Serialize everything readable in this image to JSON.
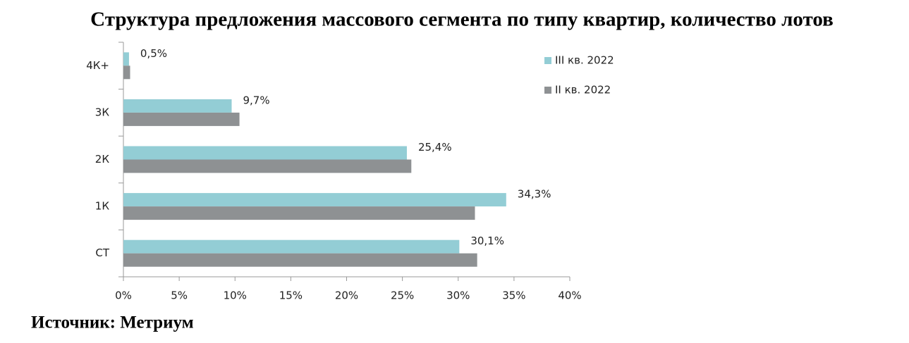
{
  "chart_data": {
    "type": "bar",
    "orientation": "horizontal",
    "title": "Структура предложения массового сегмента по типу квартир, количество лотов",
    "source": "Источник: Метриум",
    "categories": [
      "4К+",
      "3К",
      "2К",
      "1К",
      "СТ"
    ],
    "series": [
      {
        "name": "III кв. 2022",
        "color": "#93cdd5",
        "values": [
          0.5,
          9.7,
          25.4,
          34.3,
          30.1
        ],
        "value_labels": [
          "0,5%",
          "9,7%",
          "25,4%",
          "34,3%",
          "30,1%"
        ]
      },
      {
        "name": "II кв. 2022",
        "color": "#8e9193",
        "values": [
          0.6,
          10.4,
          25.8,
          31.5,
          31.7
        ]
      }
    ],
    "xlim": [
      0,
      40
    ],
    "xticks": [
      {
        "value": 0,
        "label": "0%"
      },
      {
        "value": 5,
        "label": "5%"
      },
      {
        "value": 10,
        "label": "10%"
      },
      {
        "value": 15,
        "label": "15%"
      },
      {
        "value": 20,
        "label": "20%"
      },
      {
        "value": 25,
        "label": "25%"
      },
      {
        "value": 30,
        "label": "30%"
      },
      {
        "value": 35,
        "label": "35%"
      },
      {
        "value": 40,
        "label": "40%"
      }
    ],
    "grid": false,
    "legend": "right"
  }
}
